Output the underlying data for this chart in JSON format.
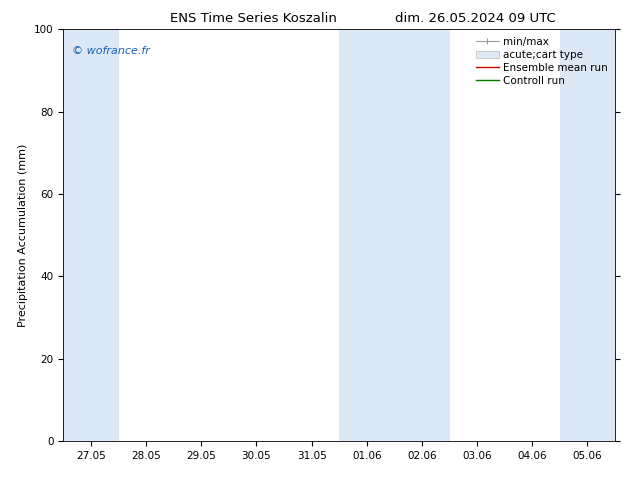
{
  "title_left": "ENS Time Series Koszalin",
  "title_right": "dim. 26.05.2024 09 UTC",
  "ylabel": "Precipitation Accumulation (mm)",
  "ylim": [
    0,
    100
  ],
  "yticks": [
    0,
    20,
    40,
    60,
    80,
    100
  ],
  "x_tick_labels": [
    "27.05",
    "28.05",
    "29.05",
    "30.05",
    "31.05",
    "01.06",
    "02.06",
    "03.06",
    "04.06",
    "05.06"
  ],
  "background_color": "#ffffff",
  "plot_bg_color": "#ffffff",
  "shaded_bands": [
    {
      "xmin": 0,
      "xmax": 1,
      "color": "#dce8f5"
    },
    {
      "xmin": 5,
      "xmax": 7,
      "color": "#dce8f5"
    },
    {
      "xmin": 9,
      "xmax": 10,
      "color": "#dce8f5"
    }
  ],
  "watermark_text": "© wofrance.fr",
  "watermark_color": "#1a5fb4",
  "legend_entries": [
    {
      "label": "min/max",
      "color": "#aaaaaa",
      "lw": 1.0,
      "style": "errorbar"
    },
    {
      "label": "acute;cart type",
      "color": "#dce8f5",
      "lw": 6,
      "style": "band"
    },
    {
      "label": "Ensemble mean run",
      "color": "#cc0000",
      "lw": 1.0,
      "style": "line"
    },
    {
      "label": "Controll run",
      "color": "#007700",
      "lw": 1.0,
      "style": "line"
    }
  ],
  "title_fontsize": 9.5,
  "tick_fontsize": 7.5,
  "ylabel_fontsize": 8,
  "watermark_fontsize": 8,
  "legend_fontsize": 7.5
}
